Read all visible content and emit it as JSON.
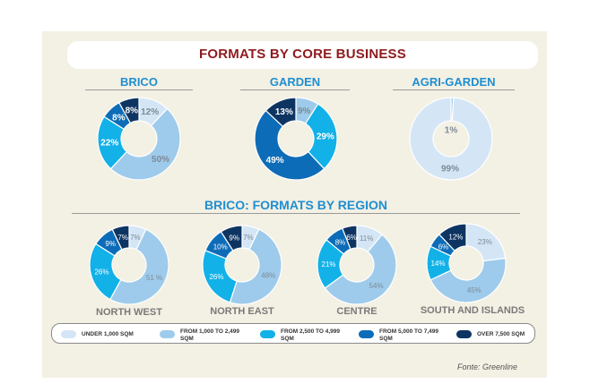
{
  "title": "FORMATS BY CORE BUSINESS",
  "colors": {
    "under_1000": "#d4e6f6",
    "1000_2499": "#9ecbeb",
    "2500_4999": "#12b1e8",
    "5000_7499": "#0d6cb8",
    "over_7500": "#0e3562"
  },
  "chart_data": [
    {
      "type": "pie",
      "donut": true,
      "title": "BRICO",
      "categories": [
        "UNDER 1,000 SQM",
        "FROM 1,000 TO 2,499 SQM",
        "FROM 2,500 TO 4,999 SQM",
        "FROM 5,000 TO 7,499 SQM",
        "OVER 7,500 SQM"
      ],
      "values": [
        12,
        50,
        22,
        8,
        8
      ],
      "labels": [
        "12%",
        "50%",
        "22%",
        "8%",
        "8%"
      ]
    },
    {
      "type": "pie",
      "donut": true,
      "title": "GARDEN",
      "categories": [
        "FROM 1,000 TO 2,499 SQM",
        "FROM 2,500 TO 4,999 SQM",
        "FROM 5,000 TO 7,499 SQM",
        "OVER 7,500 SQM"
      ],
      "values": [
        9,
        29,
        49,
        13
      ],
      "labels": [
        "9%",
        "29%",
        "49%",
        "13%"
      ]
    },
    {
      "type": "pie",
      "donut": true,
      "title": "AGRI-GARDEN",
      "categories": [
        "FROM 1,000 TO 2,499 SQM",
        "UNDER 1,000 SQM"
      ],
      "values": [
        1,
        99
      ],
      "labels": [
        "1%",
        "99%"
      ]
    },
    {
      "type": "pie",
      "donut": true,
      "title": "NORTH WEST",
      "group": "BRICO: FORMATS BY REGION",
      "categories": [
        "UNDER 1,000 SQM",
        "FROM 1,000 TO 2,499 SQM",
        "FROM 2,500 TO 4,999 SQM",
        "FROM 5,000 TO 7,499 SQM",
        "OVER 7,500 SQM"
      ],
      "values": [
        7,
        51,
        26,
        9,
        7
      ],
      "labels": [
        "7%",
        "51 %",
        "26%",
        "9%",
        "7%"
      ]
    },
    {
      "type": "pie",
      "donut": true,
      "title": "NORTH EAST",
      "group": "BRICO: FORMATS BY REGION",
      "categories": [
        "UNDER 1,000 SQM",
        "FROM 1,000 TO 2,499 SQM",
        "FROM 2,500 TO 4,999 SQM",
        "FROM 5,000 TO 7,499 SQM",
        "OVER 7,500 SQM"
      ],
      "values": [
        7,
        48,
        26,
        10,
        9
      ],
      "labels": [
        "7%",
        "48%",
        "26%",
        "10%",
        "9%"
      ]
    },
    {
      "type": "pie",
      "donut": true,
      "title": "CENTRE",
      "group": "BRICO: FORMATS BY REGION",
      "categories": [
        "UNDER 1,000 SQM",
        "FROM 1,000 TO 2,499 SQM",
        "FROM 2,500 TO 4,999 SQM",
        "FROM 5,000 TO 7,499 SQM",
        "OVER 7,500 SQM"
      ],
      "values": [
        11,
        54,
        21,
        8,
        6
      ],
      "labels": [
        "11%",
        "54%",
        "21%",
        "8%",
        "6%"
      ]
    },
    {
      "type": "pie",
      "donut": true,
      "title": "SOUTH AND ISLANDS",
      "group": "BRICO: FORMATS BY REGION",
      "categories": [
        "UNDER 1,000 SQM",
        "FROM 1,000 TO 2,499 SQM",
        "FROM 2,500 TO 4,999 SQM",
        "FROM 5,000 TO 7,499 SQM",
        "OVER 7,500 SQM"
      ],
      "values": [
        23,
        45,
        14,
        6,
        12
      ],
      "labels": [
        "23%",
        "45%",
        "14%",
        "6%",
        "12%"
      ]
    }
  ],
  "region_section_title": "BRICO: FORMATS BY REGION",
  "legend": [
    {
      "label": "UNDER 1,000 SQM",
      "color": "#d4e6f6"
    },
    {
      "label": "FROM 1,000 TO 2,499 SQM",
      "color": "#9ecbeb"
    },
    {
      "label": "FROM 2,500 TO 4,999 SQM",
      "color": "#12b1e8"
    },
    {
      "label": "FROM 5,000 TO 7,499 SQM",
      "color": "#0d6cb8"
    },
    {
      "label": "OVER 7,500 SQM",
      "color": "#0e3562"
    }
  ],
  "source": "Fonte: Greenline"
}
